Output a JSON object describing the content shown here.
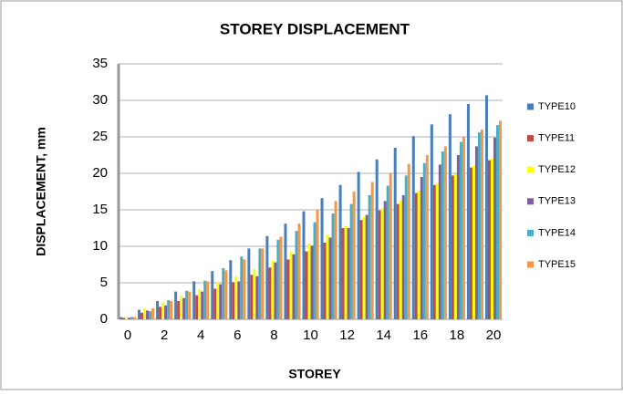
{
  "chart_data": {
    "type": "bar",
    "title": "STOREY DISPLACEMENT",
    "x_label": "STOREY",
    "y_label": "DISPLACEMENT, mm",
    "categories": [
      0,
      null,
      2,
      null,
      4,
      null,
      6,
      null,
      8,
      null,
      10,
      null,
      12,
      null,
      14,
      null,
      16,
      null,
      18,
      null,
      20
    ],
    "series": [
      {
        "name": "TYPE10",
        "color": "#4a7ebb",
        "values": [
          0.3,
          1.3,
          2.5,
          3.8,
          5.2,
          6.6,
          8.1,
          9.7,
          11.4,
          13.1,
          14.8,
          16.6,
          18.4,
          20.2,
          21.9,
          23.5,
          25.1,
          26.7,
          28.1,
          29.5,
          30.7
        ]
      },
      {
        "name": "TYPE11",
        "color": "#be4b48",
        "values": [
          0.2,
          0.9,
          1.7,
          2.5,
          3.3,
          4.2,
          5.1,
          6.1,
          7.1,
          8.2,
          9.3,
          10.5,
          12.5,
          13.6,
          14.9,
          15.8,
          17.3,
          18.4,
          19.7,
          20.8,
          21.8
        ]
      },
      {
        "name": "TYPE12",
        "color": "#ffff00",
        "values": [
          0.3,
          1.5,
          2.4,
          3.2,
          4.1,
          5.0,
          5.9,
          6.9,
          8.0,
          9.3,
          10.4,
          11.6,
          12.8,
          14.0,
          15.2,
          16.3,
          17.6,
          18.6,
          19.9,
          21.0,
          22.0
        ]
      },
      {
        "name": "TYPE13",
        "color": "#7d5fa0",
        "values": [
          0.2,
          1.2,
          1.9,
          2.9,
          3.8,
          4.8,
          5.2,
          5.9,
          7.8,
          8.9,
          10.1,
          11.2,
          12.5,
          14.3,
          16.2,
          17.0,
          19.5,
          21.2,
          22.5,
          23.7,
          24.9
        ]
      },
      {
        "name": "TYPE14",
        "color": "#4bacc6",
        "values": [
          0.3,
          1.1,
          2.6,
          3.9,
          5.3,
          7.0,
          8.6,
          9.7,
          10.9,
          12.1,
          13.3,
          14.5,
          15.8,
          17.0,
          18.3,
          19.7,
          21.4,
          23.0,
          24.3,
          25.6,
          26.6
        ]
      },
      {
        "name": "TYPE15",
        "color": "#f79646",
        "values": [
          0.3,
          1.5,
          2.5,
          3.8,
          5.2,
          6.7,
          8.2,
          9.7,
          11.3,
          13.1,
          15.0,
          16.2,
          17.5,
          18.8,
          20.0,
          21.3,
          22.5,
          23.7,
          25.0,
          26.0,
          27.2
        ]
      }
    ],
    "ylim": [
      0,
      35
    ],
    "yticks": [
      0,
      5,
      10,
      15,
      20,
      25,
      30,
      35
    ],
    "grid": true,
    "legend": "right"
  }
}
